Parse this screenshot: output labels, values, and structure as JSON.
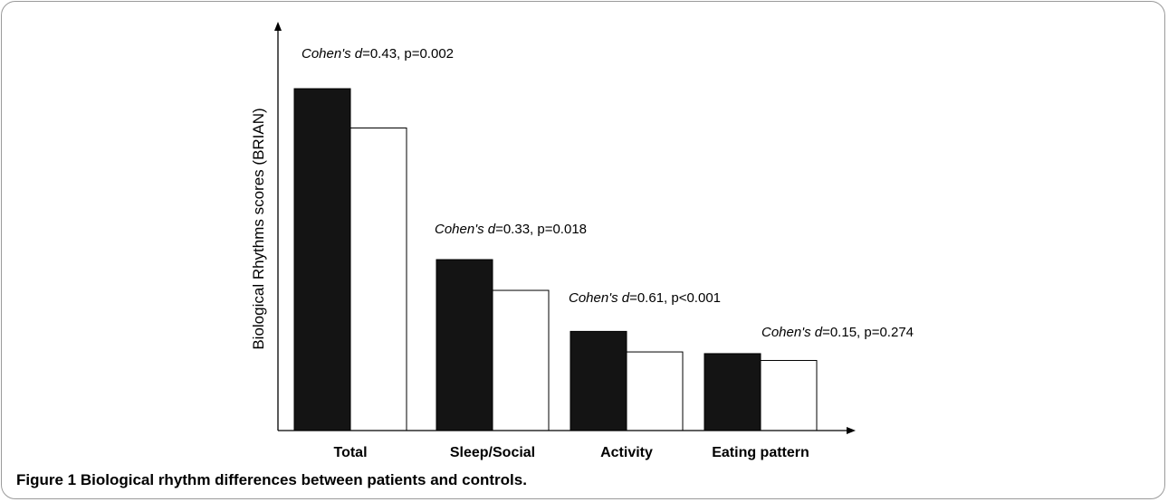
{
  "caption": {
    "label": "Figure 1",
    "text": "Biological rhythm differences between patients and controls."
  },
  "colors": {
    "series_1": "#141414",
    "series_2": "#ffffff",
    "outline": "#000000"
  },
  "chart_data": {
    "type": "bar",
    "title": "",
    "xlabel": "",
    "ylabel": "Biological Rhythms scores (BRIAN)",
    "categories": [
      "Total",
      "Sleep/Social",
      "Activity",
      "Eating pattern"
    ],
    "series": [
      {
        "values": [
          100,
          50,
          29,
          22.5
        ]
      },
      {
        "values": [
          88.5,
          41,
          23,
          20.5
        ]
      }
    ],
    "ylim": [
      0,
      118
    ],
    "grid": false,
    "legend": "none",
    "annotations": [
      {
        "category": "Total",
        "italic": "Cohen's d",
        "rest": "=0.43, p=0.002"
      },
      {
        "category": "Sleep/Social",
        "italic": "Cohen's d",
        "rest": "=0.33, p=0.018"
      },
      {
        "category": "Activity",
        "italic": "Cohen's d",
        "rest": "=0.61, p<0.001"
      },
      {
        "category": "Eating pattern",
        "italic": "Cohen's d",
        "rest": "=0.15, p=0.274"
      }
    ]
  }
}
